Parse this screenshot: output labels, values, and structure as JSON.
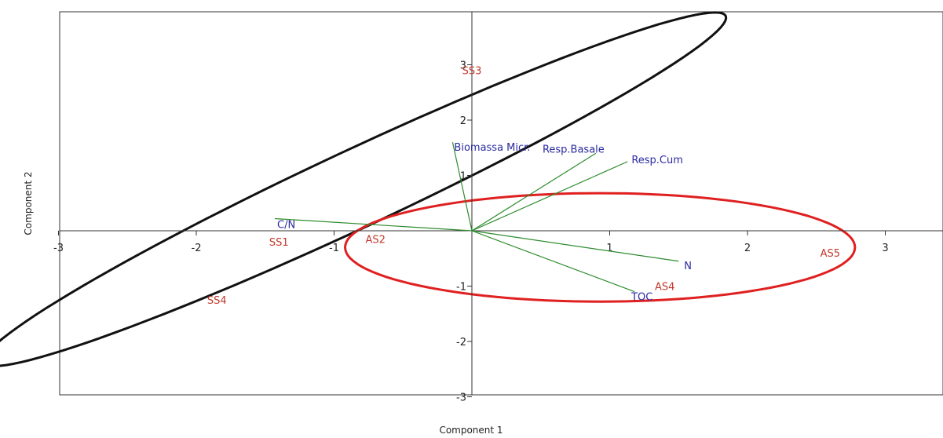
{
  "chart_data": {
    "type": "scatter",
    "subtype": "pca-biplot",
    "title": "",
    "xlabel": "Component 1",
    "ylabel": "Component 2",
    "xlim": [
      -3,
      3.4
    ],
    "ylim": [
      -3,
      3.95
    ],
    "x_ticks": [
      -3,
      -2,
      -1,
      1,
      2,
      3
    ],
    "y_ticks": [
      -3,
      -2,
      -1,
      1,
      2,
      3
    ],
    "grid": false,
    "series": [
      {
        "name": "",
        "kind": "samples",
        "color": "#c0392b",
        "points": [
          {
            "label": "SS3",
            "x": 0.0,
            "y": 2.9
          },
          {
            "label": "SS1",
            "x": -1.4,
            "y": -0.2
          },
          {
            "label": "SS4",
            "x": -1.85,
            "y": -1.25
          },
          {
            "label": "AS2",
            "x": -0.7,
            "y": -0.15
          },
          {
            "label": "AS4",
            "x": 1.4,
            "y": -1.0
          },
          {
            "label": "AS5",
            "x": 2.6,
            "y": -0.4
          }
        ]
      },
      {
        "name": "",
        "kind": "loadings",
        "color": "#2a2aa0",
        "line_color": "#2e8b2e",
        "vectors": [
          {
            "label": "Biomassa Micr.",
            "x": -0.14,
            "y": 1.6
          },
          {
            "label": "Resp.Basale",
            "x": 0.9,
            "y": 1.4
          },
          {
            "label": "Resp.Cum",
            "x": 1.13,
            "y": 1.25
          },
          {
            "label": "C/N",
            "x": -1.43,
            "y": 0.22
          },
          {
            "label": "N",
            "x": 1.5,
            "y": -0.55
          },
          {
            "label": "TOC",
            "x": 1.18,
            "y": -1.1
          }
        ]
      }
    ],
    "ellipses": [
      {
        "color": "#111111",
        "center_x": -0.85,
        "center_y": 0.75,
        "semi_major": 4.15,
        "semi_minor": 0.5,
        "angle_deg": 50
      },
      {
        "color": "#e02020",
        "center_x": 0.93,
        "center_y": -0.3,
        "semi_major": 1.85,
        "semi_minor": 0.98,
        "angle_deg": 0
      }
    ]
  }
}
